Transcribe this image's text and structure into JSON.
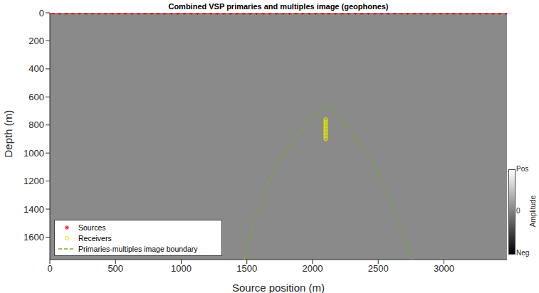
{
  "chart_data": {
    "type": "scatter",
    "title": "Combined VSP primaries and multiples image (geophones)",
    "x_label": "Source position (m)",
    "y_label": "Depth (m)",
    "xlim": [
      0,
      3480
    ],
    "xticks": [
      0,
      500,
      1000,
      1500,
      2000,
      2500,
      3000
    ],
    "ylim": [
      0,
      1760
    ],
    "yticks": [
      0,
      200,
      400,
      600,
      800,
      1000,
      1200,
      1400,
      1600
    ],
    "grid": false,
    "legend": "lower left",
    "series": [
      {
        "name": "Sources",
        "color": "#ff0000",
        "marker": "star",
        "x": [
          25,
          75,
          125,
          175,
          225,
          275,
          325,
          375,
          425,
          475,
          525,
          575,
          625,
          675,
          725,
          775,
          825,
          875,
          925,
          975,
          1025,
          1075,
          1125,
          1175,
          1225,
          1275,
          1325,
          1375,
          1425,
          1475,
          1525,
          1575,
          1625,
          1675,
          1725,
          1775,
          1825,
          1875,
          1925,
          1975,
          2025,
          2075,
          2125,
          2175,
          2225,
          2275,
          2325,
          2375,
          2425,
          2475,
          2525,
          2575,
          2625,
          2675,
          2725,
          2775,
          2825,
          2875,
          2925,
          2975,
          3025,
          3075,
          3125,
          3175,
          3225,
          3275,
          3325,
          3375,
          3425,
          3475
        ],
        "y": [
          0,
          0,
          0,
          0,
          0,
          0,
          0,
          0,
          0,
          0,
          0,
          0,
          0,
          0,
          0,
          0,
          0,
          0,
          0,
          0,
          0,
          0,
          0,
          0,
          0,
          0,
          0,
          0,
          0,
          0,
          0,
          0,
          0,
          0,
          0,
          0,
          0,
          0,
          0,
          0,
          0,
          0,
          0,
          0,
          0,
          0,
          0,
          0,
          0,
          0,
          0,
          0,
          0,
          0,
          0,
          0,
          0,
          0,
          0,
          0,
          0,
          0,
          0,
          0,
          0,
          0,
          0,
          0,
          0,
          0
        ]
      },
      {
        "name": "Receivers",
        "color": "#e5e500",
        "marker": "circle",
        "x": [
          2100,
          2100,
          2100,
          2100,
          2100,
          2100,
          2100,
          2100,
          2100,
          2100,
          2100,
          2100,
          2100,
          2100,
          2100
        ],
        "y": [
          760,
          770,
          780,
          790,
          800,
          810,
          820,
          830,
          840,
          850,
          860,
          870,
          880,
          890,
          900
        ]
      },
      {
        "name": "Primaries-multiples image boundary",
        "type": "line",
        "color": "#77ac30",
        "line_style": "dashed",
        "x": [
          1480,
          1550,
          1650,
          1750,
          1900,
          2000,
          2100,
          2200,
          2300,
          2450,
          2550,
          2650,
          2760
        ],
        "y": [
          1760,
          1500,
          1250,
          1050,
          850,
          740,
          660,
          740,
          850,
          1050,
          1250,
          1500,
          1760
        ]
      }
    ],
    "colorbar": {
      "label": "Amplitude",
      "range": [
        -1,
        1
      ],
      "ticks": [
        {
          "value": 1,
          "label": "Pos"
        },
        0,
        {
          "value": -1,
          "label": "Neg"
        }
      ]
    }
  }
}
